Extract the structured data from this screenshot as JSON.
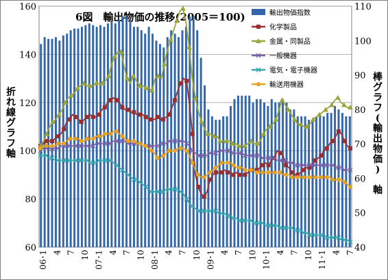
{
  "chart_data": {
    "type": "bar+line",
    "title": "6図　輸出物価の推移(2005＝100)",
    "ylabel_left": "折れ線グラフ軸",
    "ylabel_right": "棒グラフ(輸出物価)　軸",
    "ylim_left": [
      60,
      160
    ],
    "yticks_left": [
      "60",
      "80",
      "100",
      "120",
      "140",
      "160"
    ],
    "ylim_right": [
      40,
      110
    ],
    "yticks_right": [
      "40",
      "50",
      "60",
      "70",
      "80",
      "90",
      "100",
      "110"
    ],
    "x_tick_labels": [
      "06･1",
      "4",
      "7",
      "10",
      "07･1",
      "4",
      "7",
      "10",
      "08･1",
      "4",
      "7",
      "10",
      "09･1",
      "4",
      "7",
      "10",
      "10･1",
      "4",
      "7",
      "10",
      "11･1",
      "4",
      "7"
    ],
    "legend_position": "top-right",
    "colors": {
      "bar": "#3366aa",
      "chem": "#9b2d2d",
      "metal": "#9aa63a",
      "general": "#7a5fa8",
      "elec": "#2fa8aa",
      "transport": "#e8a020"
    },
    "series": [
      {
        "name": "輸出物価指数",
        "type": "bar",
        "axis": "right",
        "values": [
          99,
          101,
          100.5,
          100.5,
          101,
          100,
          101.5,
          102,
          103,
          103.5,
          103.5,
          104,
          104.5,
          105,
          104.5,
          104,
          104.5,
          104,
          105,
          105.5,
          105,
          106,
          107,
          107,
          106,
          104,
          104,
          103,
          102,
          104,
          102,
          100,
          99,
          98,
          101,
          103,
          102,
          101,
          103,
          104,
          107,
          107,
          103,
          95,
          87,
          80,
          78,
          77,
          77,
          78,
          78,
          81,
          83,
          84,
          84,
          84,
          84,
          82,
          83,
          83,
          82,
          81,
          83,
          82,
          82,
          83,
          82,
          80,
          80,
          78,
          78,
          78,
          77,
          77,
          78,
          78,
          78,
          79,
          79,
          81,
          80,
          79,
          78,
          78
        ]
      },
      {
        "name": "化学製品",
        "type": "line",
        "axis": "left",
        "values": [
          102,
          103,
          104,
          104,
          104,
          105,
          106,
          107,
          109,
          112,
          113,
          115,
          114,
          113,
          112,
          113,
          114,
          115,
          114,
          114,
          115,
          117,
          118,
          120,
          121,
          122,
          121,
          120,
          118,
          117,
          117,
          116,
          116,
          115,
          115,
          115,
          114,
          113,
          113,
          113,
          114,
          113,
          113,
          114,
          115,
          118,
          121,
          125,
          128,
          130,
          129,
          119,
          107,
          90,
          85,
          82,
          81,
          83,
          88,
          90,
          91,
          91,
          91,
          92,
          91,
          91,
          90,
          91,
          90,
          90,
          90,
          91,
          92,
          92,
          92,
          93,
          94,
          95,
          94,
          96,
          97,
          100,
          99,
          98,
          94,
          93,
          91,
          90,
          90,
          91,
          92,
          93,
          93,
          94,
          96,
          97,
          98,
          100,
          101,
          103,
          104,
          106,
          108,
          107,
          104,
          102,
          101
        ]
      },
      {
        "name": "金属・同製品",
        "type": "line",
        "axis": "left",
        "values": [
          102,
          104,
          107,
          110,
          112,
          113,
          115,
          117,
          120,
          122,
          123,
          124,
          126,
          127,
          128,
          127,
          127,
          127,
          128,
          128,
          128,
          129,
          131,
          136,
          139,
          141,
          141,
          135,
          130,
          128,
          131,
          129,
          127,
          127,
          126,
          126,
          125,
          130,
          131,
          130,
          136,
          142,
          146,
          150,
          154,
          158,
          159,
          153,
          143,
          130,
          122,
          116,
          112,
          109,
          107,
          107,
          106,
          106,
          104,
          104,
          104,
          104,
          103,
          103,
          102,
          102,
          102,
          103,
          104,
          103,
          103,
          104,
          107,
          109,
          110,
          111,
          113,
          117,
          121,
          119,
          117,
          115,
          113,
          111,
          111,
          110,
          110,
          111,
          113,
          114,
          115,
          116,
          117,
          118,
          119,
          121,
          122,
          120,
          119,
          118,
          118
        ]
      },
      {
        "name": "一般機器",
        "type": "line",
        "axis": "left",
        "values": [
          100,
          101,
          101,
          101,
          101,
          101,
          101,
          102,
          102,
          102,
          102,
          102,
          102,
          102,
          102,
          102,
          102,
          102,
          102,
          103,
          103,
          103,
          103,
          103,
          103,
          104,
          104,
          104,
          104,
          104,
          103,
          103,
          103,
          103,
          103,
          102,
          102,
          102,
          102,
          102,
          102,
          103,
          103,
          103,
          104,
          104,
          104,
          104,
          104,
          104,
          103,
          102,
          100,
          99,
          98,
          98,
          98,
          98,
          99,
          99,
          99,
          100,
          100,
          100,
          100,
          100,
          99,
          99,
          99,
          99,
          98,
          98,
          98,
          98,
          98,
          98,
          97,
          97,
          97,
          97,
          97,
          96,
          96,
          96,
          96,
          95,
          95,
          94,
          94,
          94,
          94,
          94,
          94,
          94,
          94,
          94,
          94,
          94,
          94,
          94,
          94,
          93,
          93,
          93,
          92,
          92,
          92
        ]
      },
      {
        "name": "電気・電子機器",
        "type": "line",
        "axis": "left",
        "values": [
          98,
          98,
          98,
          97,
          97,
          96,
          96,
          96,
          96,
          96,
          96,
          96,
          96,
          96,
          96,
          96,
          96,
          95,
          95,
          95,
          96,
          96,
          96,
          96,
          96,
          95,
          94,
          93,
          92,
          91,
          90,
          89,
          88,
          88,
          87,
          86,
          85,
          84,
          83,
          83,
          83,
          83,
          83,
          84,
          84,
          84,
          84,
          84,
          83,
          82,
          80,
          78,
          77,
          76,
          75,
          75,
          75,
          75,
          75,
          75,
          75,
          74,
          74,
          74,
          73,
          73,
          72,
          72,
          71,
          71,
          71,
          71,
          71,
          70,
          70,
          70,
          70,
          69,
          69,
          69,
          69,
          69,
          68,
          68,
          68,
          68,
          68,
          67,
          67,
          67,
          66,
          66,
          65,
          65,
          65,
          65,
          65,
          65,
          64,
          64,
          64,
          64,
          64,
          63,
          63,
          63,
          62
        ]
      },
      {
        "name": "輸送用機器",
        "type": "line",
        "axis": "left",
        "values": [
          101,
          102,
          102,
          102,
          102,
          102,
          103,
          103,
          103,
          104,
          105,
          105,
          105,
          105,
          104,
          104,
          105,
          105,
          105,
          106,
          106,
          106,
          107,
          107,
          107,
          108,
          108,
          107,
          106,
          105,
          104,
          104,
          104,
          103,
          103,
          102,
          102,
          101,
          100,
          99,
          97,
          97,
          98,
          99,
          100,
          100,
          100,
          101,
          101,
          101,
          100,
          98,
          95,
          92,
          90,
          89,
          89,
          90,
          91,
          92,
          93,
          94,
          95,
          95,
          95,
          95,
          94,
          93,
          93,
          93,
          92,
          92,
          92,
          92,
          91,
          91,
          91,
          91,
          91,
          91,
          91,
          91,
          91,
          90,
          90,
          90,
          89,
          89,
          89,
          89,
          89,
          89,
          89,
          89,
          89,
          89,
          89,
          89,
          89,
          89,
          88,
          88,
          88,
          88,
          87,
          86,
          85
        ]
      }
    ]
  }
}
